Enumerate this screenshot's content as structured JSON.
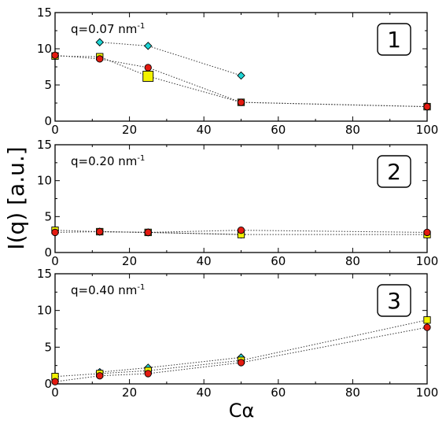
{
  "chart_data": {
    "type": "scatter",
    "ylabel": "I(q) [a.u.]",
    "xlabel": "Cα",
    "colors": {
      "cyan": "#1fd5d5",
      "yellow": "#f2f200",
      "red": "#e31a10"
    },
    "xlim": [
      0,
      100
    ],
    "xticks": [
      "0",
      "20",
      "40",
      "60",
      "80",
      "100"
    ],
    "ylim": [
      0,
      15
    ],
    "yticks": [
      "0",
      "5",
      "10",
      "15"
    ],
    "panels": [
      {
        "number": "1",
        "q_label": "q=0.07 nm",
        "q_unit_sup": "-1",
        "series": [
          {
            "color": "cyan",
            "marker": "diamond",
            "x": [
              12,
              25,
              50
            ],
            "y": [
              10.9,
              10.4,
              6.3
            ]
          },
          {
            "color": "yellow",
            "marker": "square",
            "x": [
              0,
              12,
              25,
              50,
              100
            ],
            "y": [
              9.0,
              8.9,
              6.2,
              2.6,
              2.0
            ],
            "sizes": [
              "s",
              "s",
              "l",
              "s",
              "s"
            ]
          },
          {
            "color": "red",
            "marker": "circle",
            "x": [
              0,
              12,
              25,
              50,
              100
            ],
            "y": [
              9.1,
              8.6,
              7.4,
              2.6,
              2.0
            ]
          }
        ]
      },
      {
        "number": "2",
        "q_label": "q=0.20 nm",
        "q_unit_sup": "-1",
        "series": [
          {
            "color": "cyan",
            "marker": "diamond",
            "x": [
              12,
              25,
              50
            ],
            "y": [
              2.9,
              2.8,
              2.5
            ]
          },
          {
            "color": "yellow",
            "marker": "square",
            "x": [
              0,
              12,
              25,
              50,
              100
            ],
            "y": [
              3.1,
              2.9,
              2.8,
              2.5,
              2.5
            ]
          },
          {
            "color": "red",
            "marker": "circle",
            "x": [
              0,
              12,
              25,
              50,
              100
            ],
            "y": [
              2.8,
              2.9,
              2.8,
              3.1,
              2.8
            ]
          }
        ]
      },
      {
        "number": "3",
        "q_label": "q=0.40 nm",
        "q_unit_sup": "-1",
        "series": [
          {
            "color": "cyan",
            "marker": "diamond",
            "x": [
              12,
              25,
              50
            ],
            "y": [
              1.6,
              2.2,
              3.6
            ]
          },
          {
            "color": "yellow",
            "marker": "square",
            "x": [
              0,
              12,
              25,
              50,
              100
            ],
            "y": [
              1.0,
              1.4,
              1.8,
              3.2,
              8.7
            ]
          },
          {
            "color": "red",
            "marker": "circle",
            "x": [
              0,
              12,
              25,
              50,
              100
            ],
            "y": [
              0.3,
              1.1,
              1.4,
              2.9,
              7.7
            ]
          }
        ]
      }
    ]
  }
}
